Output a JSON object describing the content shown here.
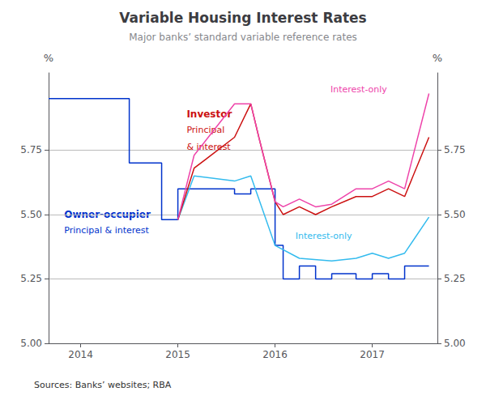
{
  "chart_data": {
    "type": "line",
    "title": "Variable Housing Interest Rates",
    "subtitle": "Major banks’ standard variable reference rates",
    "source": "Sources: Banks’ websites; RBA",
    "ylabel": "%",
    "y2label": "%",
    "xlim": [
      2013.67,
      2017.67
    ],
    "xticks": [
      2014,
      2015,
      2016,
      2017
    ],
    "ylim": [
      5.0,
      6.05
    ],
    "yticks": [
      {
        "value": 5.0,
        "label": "5.00"
      },
      5.25,
      {
        "value": 5.5,
        "label": "5.50"
      },
      5.75
    ],
    "y2lim": [
      5.0,
      6.05
    ],
    "y2ticks": [
      {
        "value": 5.0,
        "label": "5.00"
      },
      5.25,
      {
        "value": 5.5,
        "label": "5.50"
      },
      5.75
    ],
    "grid": "y",
    "series": [
      {
        "color": "#0033cc",
        "x": [
          2013.67,
          2014.5,
          2014.5,
          2014.833,
          2014.833,
          2015.0,
          2015.0,
          2015.583,
          2015.583,
          2015.75,
          2015.75,
          2016.0,
          2016.0,
          2016.083,
          2016.083,
          2016.25,
          2016.25,
          2016.417,
          2016.417,
          2016.583,
          2016.583,
          2016.833,
          2016.833,
          2017.0,
          2017.0,
          2017.167,
          2017.167,
          2017.333,
          2017.333,
          2017.583
        ],
        "values": [
          5.95,
          5.95,
          5.7,
          5.7,
          5.48,
          5.48,
          5.6,
          5.6,
          5.58,
          5.58,
          5.6,
          5.6,
          5.38,
          5.38,
          5.25,
          5.25,
          5.3,
          5.3,
          5.25,
          5.25,
          5.27,
          5.27,
          5.25,
          5.25,
          5.27,
          5.27,
          5.25,
          5.25,
          5.3,
          5.3
        ]
      },
      {
        "color": "#33bbee",
        "x": [
          2015.0,
          2015.0,
          2015.167,
          2015.167,
          2015.583,
          2015.583,
          2015.75,
          2015.75,
          2016.0,
          2016.0,
          2016.25,
          2016.25,
          2016.583,
          2016.583,
          2016.833,
          2016.833,
          2017.0,
          2017.0,
          2017.167,
          2017.167,
          2017.333,
          2017.333,
          2017.583
        ],
        "values": [
          5.48,
          5.48,
          5.65,
          5.65,
          5.63,
          5.63,
          5.65,
          5.65,
          5.38,
          5.38,
          5.33,
          5.33,
          5.32,
          5.32,
          5.33,
          5.33,
          5.35,
          5.35,
          5.33,
          5.33,
          5.35,
          5.35,
          5.49
        ]
      },
      {
        "color": "#cc1111",
        "x": [
          2015.0,
          2015.0,
          2015.167,
          2015.167,
          2015.583,
          2015.583,
          2015.75,
          2015.75,
          2015.833,
          2015.833,
          2016.0,
          2016.0,
          2016.083,
          2016.083,
          2016.25,
          2016.25,
          2016.417,
          2016.417,
          2016.583,
          2016.583,
          2016.833,
          2016.833,
          2017.0,
          2017.0,
          2017.167,
          2017.167,
          2017.333,
          2017.333,
          2017.583
        ],
        "values": [
          5.48,
          5.48,
          5.68,
          5.68,
          5.8,
          5.8,
          5.93,
          5.93,
          5.8,
          5.8,
          5.55,
          5.55,
          5.5,
          5.5,
          5.53,
          5.53,
          5.5,
          5.5,
          5.53,
          5.53,
          5.57,
          5.57,
          5.57,
          5.57,
          5.6,
          5.6,
          5.57,
          5.57,
          5.8
        ]
      },
      {
        "color": "#ee44aa",
        "x": [
          2015.0,
          2015.0,
          2015.167,
          2015.167,
          2015.583,
          2015.583,
          2015.75,
          2015.75,
          2015.833,
          2015.833,
          2016.0,
          2016.0,
          2016.083,
          2016.083,
          2016.25,
          2016.25,
          2016.417,
          2016.417,
          2016.583,
          2016.583,
          2016.833,
          2016.833,
          2017.0,
          2017.0,
          2017.167,
          2017.167,
          2017.333,
          2017.333,
          2017.583
        ],
        "values": [
          5.48,
          5.48,
          5.73,
          5.73,
          5.93,
          5.93,
          5.93,
          5.93,
          5.8,
          5.8,
          5.55,
          5.55,
          5.53,
          5.53,
          5.56,
          5.56,
          5.53,
          5.53,
          5.54,
          5.54,
          5.6,
          5.6,
          5.6,
          5.6,
          5.63,
          5.63,
          5.6,
          5.6,
          5.97
        ]
      }
    ],
    "annotations": [
      {
        "text": "Owner-occupier",
        "color": "#0033cc"
      },
      {
        "text": "Principal & interest",
        "color": "#0033cc"
      },
      {
        "text": "Investor",
        "color": "#cc1111"
      },
      {
        "text": "Principal",
        "color": "#cc1111"
      },
      {
        "text": "& interest",
        "color": "#cc1111"
      },
      {
        "text": "Interest-only",
        "color": "#ee44aa"
      },
      {
        "text": "Interest-only",
        "color": "#33bbee"
      }
    ]
  }
}
